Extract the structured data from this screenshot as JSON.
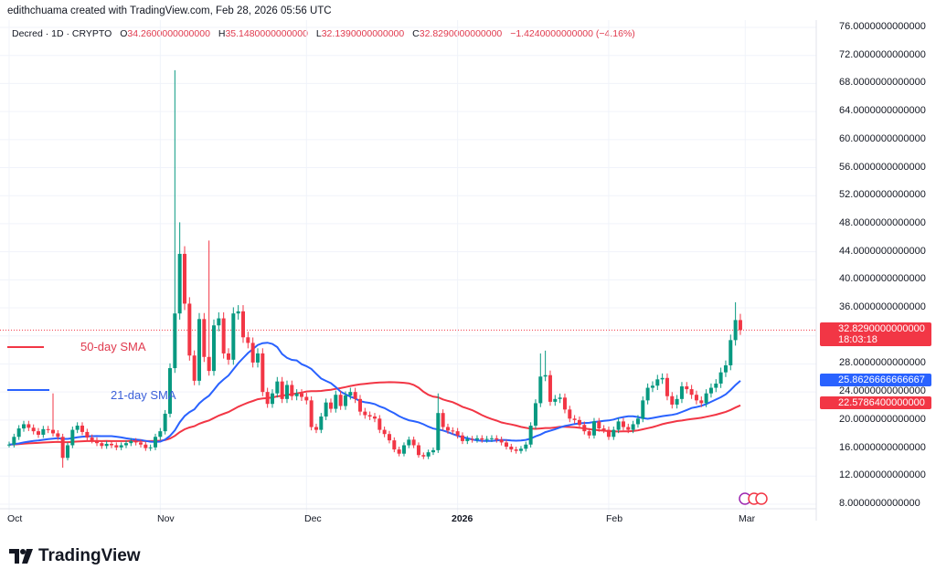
{
  "credit": "edithchuama created with TradingView.com, Feb 28, 2026 05:56 UTC",
  "legend": {
    "symbol": "Decred · 1D · CRYPTO",
    "o_label": "O",
    "o": "34.2600000000000",
    "h_label": "H",
    "h": "35.1480000000000",
    "l_label": "L",
    "l": "32.1390000000000",
    "c_label": "C",
    "c": "32.8290000000000",
    "change": "−1.4240000000000 (−4.16%)"
  },
  "price_axis": [
    "76.0000000000000",
    "72.0000000000000",
    "68.0000000000000",
    "64.0000000000000",
    "60.0000000000000",
    "56.0000000000000",
    "52.0000000000000",
    "48.0000000000000",
    "44.0000000000000",
    "40.0000000000000",
    "36.0000000000000",
    "28.0000000000000",
    "24.0000000000000",
    "20.0000000000000",
    "16.0000000000000",
    "12.0000000000000",
    "8.0000000000000"
  ],
  "tags": {
    "last_price": "32.8290000000000",
    "countdown": "18:03:18",
    "sma21": "25.8626666666667",
    "sma50": "22.5786400000000"
  },
  "time_axis": [
    "Oct",
    "Nov",
    "Dec",
    "2026",
    "Feb",
    "Mar"
  ],
  "annotations": {
    "sma50": "50-day SMA",
    "sma21": "21-day SMA"
  },
  "logo": "TradingView",
  "colors": {
    "up": "#089981",
    "down": "#f23645",
    "sma21": "#2962ff",
    "sma50": "#f23645",
    "last_price_tag": "#f23645",
    "sma21_tag": "#2962ff"
  },
  "chart_data": {
    "type": "candlestick",
    "symbol": "Decred",
    "interval": "1D",
    "x_start": "2025-10-01",
    "ylim": [
      8,
      76
    ],
    "grid": true,
    "close": [
      16.5,
      17.6,
      18.8,
      19.4,
      18.9,
      18.4,
      17.9,
      18.7,
      18.6,
      18.1,
      17.6,
      14.6,
      16.4,
      18.6,
      19.2,
      18.3,
      17.5,
      17.1,
      16.7,
      16.3,
      16.6,
      16.4,
      16.1,
      16.4,
      16.7,
      17.0,
      16.8,
      16.5,
      16.0,
      16.1,
      17.6,
      18.4,
      20.9,
      27.4,
      35.2,
      43.7,
      36.6,
      29.2,
      25.6,
      34.4,
      29.0,
      27.0,
      33.5,
      34.5,
      29.5,
      28.6,
      35.2,
      35.5,
      31.8,
      31.0,
      28.2,
      29.5,
      24.0,
      22.3,
      23.8,
      25.5,
      23.0,
      25.0,
      23.4,
      23.8,
      23.3,
      22.8,
      19.0,
      18.6,
      20.5,
      22.5,
      21.6,
      23.6,
      22.0,
      23.5,
      24.0,
      23.0,
      21.2,
      20.7,
      20.5,
      20.2,
      18.6,
      18.0,
      17.1,
      15.8,
      15.2,
      16.4,
      17.2,
      16.4,
      15.0,
      14.8,
      15.4,
      15.7,
      21.0,
      19.0,
      18.5,
      18.4,
      17.8,
      17.0,
      17.3,
      17.2,
      17.4,
      17.2,
      17.3,
      17.4,
      17.2,
      16.8,
      16.2,
      15.8,
      15.6,
      15.9,
      16.5,
      19.2,
      22.4,
      26.2,
      26.4,
      22.6,
      23.0,
      23.2,
      21.5,
      20.2,
      20.0,
      19.3,
      18.4,
      17.8,
      19.8,
      18.8,
      18.6,
      17.6,
      18.6,
      19.8,
      19.0,
      18.6,
      19.4,
      20.2,
      22.8,
      24.6,
      24.9,
      25.8,
      26.0,
      23.4,
      22.2,
      23.0,
      24.8,
      24.4,
      23.6,
      22.8,
      22.4,
      23.8,
      24.6,
      25.2,
      26.8,
      27.8,
      31.4,
      34.26,
      32.829
    ],
    "notable_wicks": [
      {
        "date": "2025-10-10",
        "high": 23.8
      },
      {
        "date": "2025-10-12",
        "low": 13.2
      },
      {
        "date": "2025-11-04",
        "high": 69.9
      },
      {
        "date": "2025-11-05",
        "high": 48.2
      },
      {
        "date": "2025-11-11",
        "high": 45.6
      },
      {
        "date": "2025-12-28",
        "high": 23.8
      },
      {
        "date": "2026-01-18",
        "high": 29.5
      },
      {
        "date": "2026-01-19",
        "high": 29.9
      },
      {
        "date": "2026-02-27",
        "high": 36.8
      },
      {
        "date": "2026-02-28",
        "high": 35.148,
        "low": 32.139
      }
    ],
    "series": [
      {
        "name": "21-day SMA",
        "last": 25.8626666666667
      },
      {
        "name": "50-day SMA",
        "last": 22.57864
      }
    ]
  }
}
